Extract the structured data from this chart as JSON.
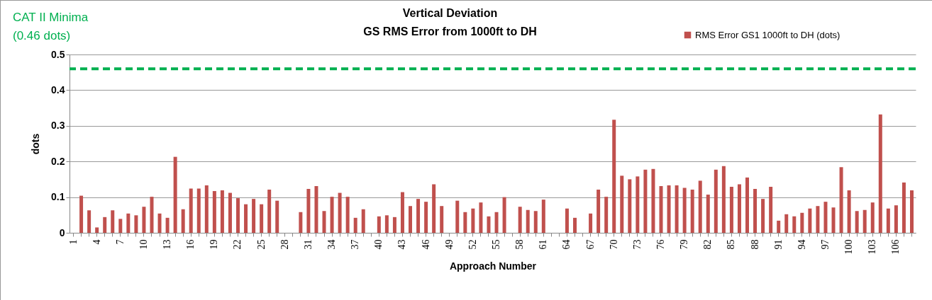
{
  "chart_data": {
    "type": "bar",
    "title": "Vertical Deviation",
    "subtitle": "GS RMS Error from 1000ft to DH",
    "xlabel": "Approach Number",
    "ylabel": "dots",
    "categories": [
      "1",
      null,
      null,
      "4",
      null,
      null,
      "7",
      null,
      null,
      "10",
      null,
      null,
      "13",
      null,
      null,
      "16",
      null,
      null,
      "19",
      null,
      null,
      "22",
      null,
      null,
      "25",
      null,
      null,
      "28",
      null,
      null,
      "31",
      null,
      null,
      "34",
      null,
      null,
      "37",
      null,
      null,
      "40",
      null,
      null,
      "43",
      null,
      null,
      "46",
      null,
      null,
      "49",
      null,
      null,
      "52",
      null,
      null,
      "55",
      null,
      null,
      "58",
      null,
      null,
      "61",
      null,
      null,
      "64",
      null,
      null,
      "67",
      null,
      null,
      "70",
      null,
      null,
      "73",
      null,
      null,
      "76",
      null,
      null,
      "79",
      null,
      null,
      "82",
      null,
      null,
      "85",
      null,
      null,
      "88",
      null,
      null,
      "91",
      null,
      null,
      "94",
      null,
      null,
      "97",
      null,
      null,
      "100",
      null,
      null,
      "103",
      null,
      null,
      "106",
      null,
      null
    ],
    "series": [
      {
        "name": "RMS Error GS1  1000ft to DH (dots)",
        "color": "#c0504d",
        "values": [
          null,
          0.104,
          0.063,
          0.015,
          0.044,
          0.063,
          0.039,
          0.054,
          0.049,
          0.073,
          0.101,
          0.054,
          0.042,
          0.213,
          0.066,
          0.124,
          0.124,
          0.133,
          0.117,
          0.119,
          0.112,
          0.097,
          0.08,
          0.095,
          0.08,
          0.121,
          0.09,
          null,
          null,
          0.058,
          0.123,
          0.131,
          0.061,
          0.101,
          0.112,
          0.101,
          0.042,
          0.066,
          null,
          0.046,
          0.049,
          0.044,
          0.114,
          0.075,
          0.095,
          0.087,
          0.136,
          0.075,
          null,
          0.09,
          0.058,
          0.068,
          0.085,
          0.046,
          0.058,
          0.1,
          null,
          0.073,
          0.064,
          0.061,
          0.093,
          null,
          null,
          0.068,
          0.042,
          null,
          0.054,
          0.121,
          0.101,
          0.317,
          0.16,
          0.15,
          0.158,
          0.177,
          0.179,
          0.131,
          0.133,
          0.133,
          0.126,
          0.121,
          0.146,
          0.107,
          0.177,
          0.187,
          0.129,
          0.136,
          0.155,
          0.123,
          0.095,
          0.129,
          0.034,
          0.052,
          0.046,
          0.056,
          0.068,
          0.075,
          0.087,
          0.071,
          0.184,
          0.119,
          0.061,
          0.064,
          0.085,
          0.332,
          0.068,
          0.077,
          0.141,
          0.119
        ]
      }
    ],
    "ylim": [
      0,
      0.5
    ],
    "yticks": [
      0,
      0.1,
      0.2,
      0.3,
      0.4,
      0.5
    ],
    "grid": "y",
    "legend": "top right",
    "ref_lines": [
      {
        "axis": "y",
        "value": 0.46,
        "label": "CAT II Minima\n(0.46 dots)",
        "color": "#00b050",
        "line_style": "dashed"
      }
    ]
  }
}
